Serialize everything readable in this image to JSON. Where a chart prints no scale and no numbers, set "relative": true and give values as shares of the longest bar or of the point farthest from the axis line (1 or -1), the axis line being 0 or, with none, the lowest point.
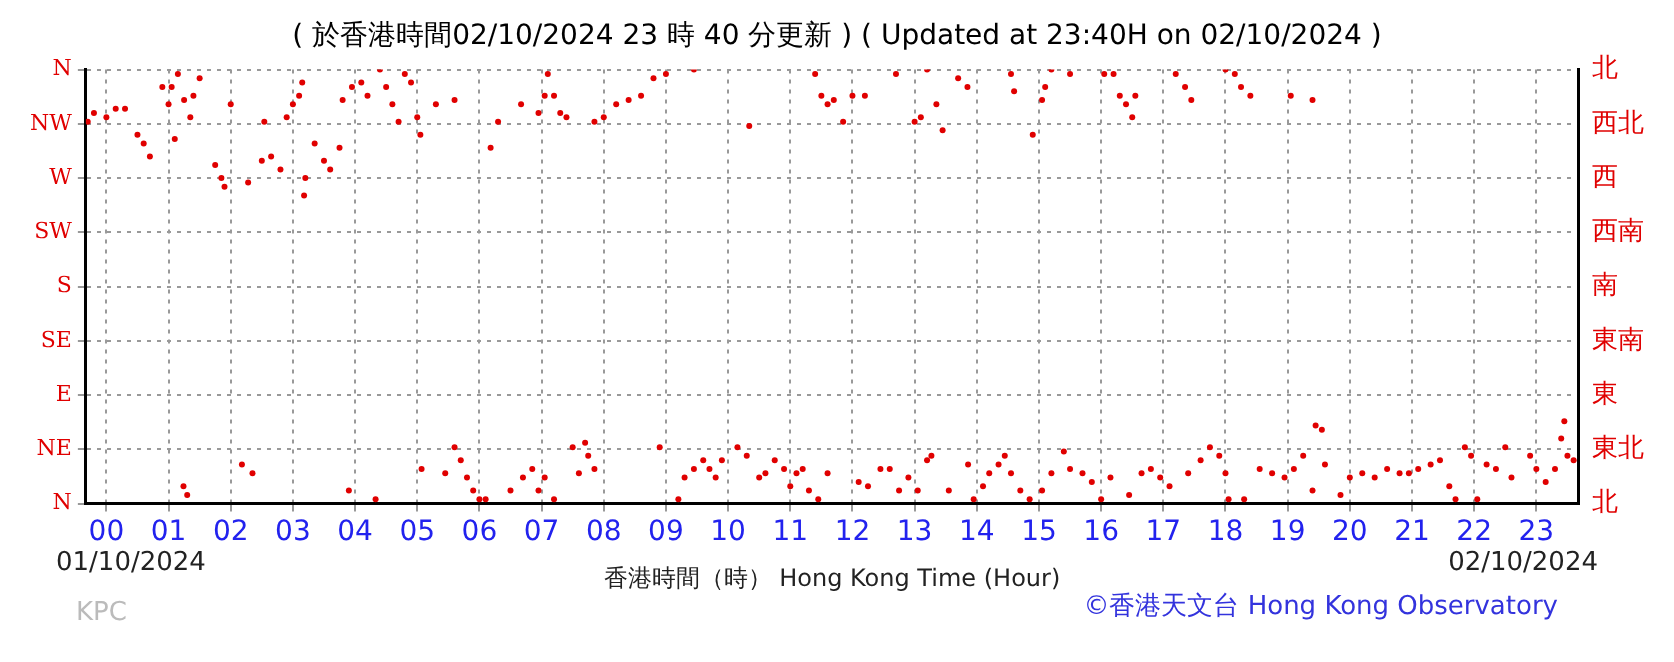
{
  "chart_data": {
    "type": "scatter",
    "title": "( 於香港時間02/10/2024 23 時 40 分更新 ) ( Updated at 23:40H on 02/10/2024 )",
    "xlabel": "香港時間（時） Hong Kong Time (Hour)",
    "annotations": [
      "01/10/2024",
      "02/10/2024",
      "KPC",
      "©香港天文台 Hong Kong Observatory"
    ],
    "marker": "circle",
    "grid": true,
    "relative": true,
    "xlim": [
      -0.33,
      23.67
    ],
    "xticks": [
      {
        "value": 0,
        "label": "00"
      },
      {
        "value": 1,
        "label": "01"
      },
      {
        "value": 2,
        "label": "02"
      },
      {
        "value": 3,
        "label": "03"
      },
      {
        "value": 4,
        "label": "04"
      },
      {
        "value": 5,
        "label": "05"
      },
      {
        "value": 6,
        "label": "06"
      },
      {
        "value": 7,
        "label": "07"
      },
      {
        "value": 8,
        "label": "08"
      },
      {
        "value": 9,
        "label": "09"
      },
      10,
      11,
      12,
      13,
      14,
      15,
      16,
      17,
      18,
      19,
      20,
      21,
      22,
      23
    ],
    "y_categories": [
      "N",
      "NW",
      "W",
      "SW",
      "S",
      "SE",
      "E",
      "NE",
      "N"
    ],
    "y2_categories": [
      "北",
      "西北",
      "西",
      "西南",
      "南",
      "東南",
      "東",
      "東北",
      "北"
    ],
    "series": [
      {
        "color": "#e00000",
        "x": [
          -0.3,
          -0.2,
          0,
          0.15,
          0.3,
          0.5,
          0.6,
          0.7,
          0.9,
          1.0,
          1.05,
          1.1,
          1.15,
          1.24,
          1.25,
          1.3,
          1.35,
          1.4,
          1.5,
          1.75,
          1.85,
          1.9,
          2.0,
          2.18,
          2.28,
          2.35,
          2.5,
          2.54,
          2.65,
          2.8,
          2.9,
          3.0,
          3.1,
          3.15,
          3.18,
          3.2,
          3.35,
          3.5,
          3.6,
          3.75,
          3.8,
          3.9,
          3.95,
          4.1,
          4.2,
          4.33,
          4.4,
          4.5,
          4.6,
          4.7,
          4.8,
          4.9,
          5.0,
          5.05,
          5.07,
          5.3,
          5.45,
          5.6,
          5.6,
          5.7,
          5.8,
          5.9,
          6.0,
          6.1,
          6.18,
          6.3,
          6.5,
          6.67,
          6.7,
          6.85,
          6.95,
          6.95,
          7.05,
          7.05,
          7.1,
          7.2,
          7.2,
          7.3,
          7.4,
          7.5,
          7.6,
          7.7,
          7.75,
          7.85,
          7.85,
          8.0,
          8.2,
          8.4,
          8.6,
          8.8,
          8.9,
          9.0,
          9.2,
          9.3,
          9.45,
          9.45,
          9.6,
          9.7,
          9.8,
          9.9,
          10.15,
          10.3,
          10.34,
          10.5,
          10.6,
          10.75,
          10.9,
          11.0,
          11.1,
          11.2,
          11.3,
          11.4,
          11.45,
          11.5,
          11.6,
          11.6,
          11.7,
          11.85,
          12.0,
          12.1,
          12.2,
          12.25,
          12.45,
          12.6,
          12.7,
          12.75,
          12.9,
          13.0,
          13.05,
          13.1,
          13.2,
          13.2,
          13.27,
          13.35,
          13.45,
          13.55,
          13.7,
          13.85,
          13.86,
          13.95,
          14.1,
          14.2,
          14.35,
          14.45,
          14.55,
          14.55,
          14.6,
          14.7,
          14.85,
          14.9,
          15.05,
          15.05,
          15.1,
          15.2,
          15.2,
          15.4,
          15.5,
          15.5,
          15.7,
          15.85,
          16.0,
          16.05,
          16.15,
          16.2,
          16.3,
          16.4,
          16.45,
          16.5,
          16.55,
          16.65,
          16.8,
          16.95,
          17.1,
          17.2,
          17.35,
          17.4,
          17.45,
          17.6,
          17.75,
          17.9,
          18.0,
          18.0,
          18.05,
          18.15,
          18.25,
          18.3,
          18.4,
          18.55,
          18.75,
          18.95,
          19.05,
          19.1,
          19.25,
          19.4,
          19.4,
          19.45,
          19.55,
          19.6,
          19.85,
          20.0,
          20.2,
          20.4,
          20.6,
          20.8,
          20.95,
          21.1,
          21.3,
          21.45,
          21.6,
          21.7,
          21.85,
          21.95,
          22.05,
          22.2,
          22.35,
          22.5,
          22.6,
          22.9,
          23.0,
          23.15,
          23.3,
          23.4,
          23.45,
          23.5,
          23.6
        ],
        "values": [
          0.88,
          0.9,
          0.89,
          0.91,
          0.91,
          0.85,
          0.83,
          0.8,
          0.96,
          0.92,
          0.96,
          0.84,
          0.99,
          0.04,
          0.93,
          0.02,
          0.89,
          0.94,
          0.98,
          0.78,
          0.75,
          0.73,
          0.92,
          0.09,
          0.74,
          0.07,
          0.79,
          0.88,
          0.8,
          0.77,
          0.89,
          0.92,
          0.94,
          0.97,
          0.71,
          0.75,
          0.83,
          0.79,
          0.77,
          0.82,
          0.93,
          0.03,
          0.96,
          0.97,
          0.94,
          0.01,
          1,
          0.96,
          0.92,
          0.88,
          0.99,
          0.97,
          0.89,
          0.85,
          0.08,
          0.92,
          0.07,
          0.13,
          0.93,
          0.1,
          0.06,
          0.03,
          0.01,
          0.01,
          0.82,
          0.88,
          0.03,
          0.92,
          0.06,
          0.08,
          0.03,
          0.9,
          0.06,
          0.94,
          0.99,
          0.94,
          0.01,
          0.9,
          0.89,
          0.13,
          0.07,
          0.14,
          0.11,
          0.08,
          0.88,
          0.89,
          0.92,
          0.93,
          0.94,
          0.98,
          0.13,
          0.99,
          0.01,
          0.06,
          0.08,
          1,
          0.1,
          0.08,
          0.06,
          0.1,
          0.13,
          0.11,
          0.87,
          0.06,
          0.07,
          0.1,
          0.08,
          0.04,
          0.07,
          0.08,
          0.03,
          0.99,
          0.01,
          0.94,
          0.92,
          0.07,
          0.93,
          0.88,
          0.94,
          0.05,
          0.94,
          0.04,
          0.08,
          0.08,
          0.99,
          0.03,
          0.06,
          0.88,
          0.03,
          0.89,
          1,
          0.1,
          0.11,
          0.92,
          0.86,
          0.03,
          0.98,
          0.96,
          0.09,
          0.01,
          0.04,
          0.07,
          0.09,
          0.11,
          0.99,
          0.07,
          0.95,
          0.03,
          0.01,
          0.85,
          0.93,
          0.03,
          0.96,
          1,
          0.07,
          0.12,
          0.08,
          0.99,
          0.07,
          0.05,
          0.01,
          0.99,
          0.06,
          0.99,
          0.94,
          0.92,
          0.02,
          0.89,
          0.94,
          0.07,
          0.08,
          0.06,
          0.04,
          0.99,
          0.96,
          0.07,
          0.93,
          0.1,
          0.13,
          0.11,
          1,
          0.07,
          0.01,
          0.99,
          0.96,
          0.01,
          0.94,
          0.08,
          0.07,
          0.06,
          0.94,
          0.08,
          0.11,
          0.93,
          0.03,
          0.18,
          0.17,
          0.09,
          0.02,
          0.06,
          0.07,
          0.06,
          0.08,
          0.07,
          0.07,
          0.08,
          0.09,
          0.1,
          0.04,
          0.01,
          0.13,
          0.11,
          0.01,
          0.09,
          0.08,
          0.13,
          0.06,
          0.11,
          0.08,
          0.05,
          0.08,
          0.15,
          0.19,
          0.11,
          0.1
        ]
      }
    ]
  }
}
